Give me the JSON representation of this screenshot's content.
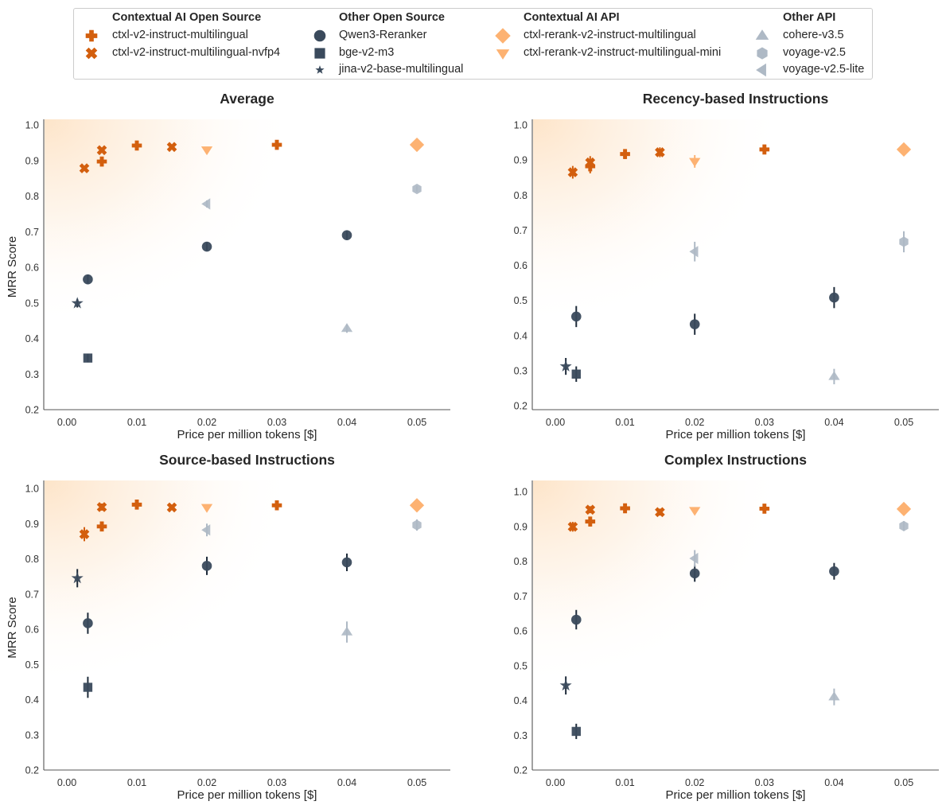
{
  "legend": {
    "groups": [
      {
        "title": "Contextual AI Open Source",
        "items": [
          {
            "key": "ctxl_v2",
            "label": "ctxl-v2-instruct-multilingual"
          },
          {
            "key": "ctxl_v2_nvfp4",
            "label": "ctxl-v2-instruct-multilingual-nvfp4"
          }
        ]
      },
      {
        "title": "Other Open Source",
        "items": [
          {
            "key": "qwen3",
            "label": "Qwen3-Reranker"
          },
          {
            "key": "bge",
            "label": "bge-v2-m3"
          },
          {
            "key": "jina",
            "label": "jina-v2-base-multilingual"
          }
        ]
      },
      {
        "title": "Contextual AI API",
        "items": [
          {
            "key": "ctxl_api",
            "label": "ctxl-rerank-v2-instruct-multilingual"
          },
          {
            "key": "ctxl_api_mini",
            "label": "ctxl-rerank-v2-instruct-multilingual-mini"
          }
        ]
      },
      {
        "title": "Other API",
        "items": [
          {
            "key": "cohere",
            "label": "cohere-v3.5"
          },
          {
            "key": "voyage",
            "label": "voyage-v2.5"
          },
          {
            "key": "voyage_lite",
            "label": "voyage-v2.5-lite"
          }
        ]
      }
    ]
  },
  "styles": {
    "ctxl_v2": {
      "marker": "plus",
      "color": "#D35F0E"
    },
    "ctxl_v2_nvfp4": {
      "marker": "x",
      "color": "#D35F0E"
    },
    "qwen3": {
      "marker": "circle",
      "color": "#3A4A5C"
    },
    "bge": {
      "marker": "square",
      "color": "#3A4A5C"
    },
    "jina": {
      "marker": "star",
      "color": "#3A4A5C"
    },
    "ctxl_api": {
      "marker": "diamond",
      "color": "#FDB272"
    },
    "ctxl_api_mini": {
      "marker": "triangle-down",
      "color": "#FDB272"
    },
    "cohere": {
      "marker": "triangle-up",
      "color": "#AEB9C5"
    },
    "voyage": {
      "marker": "hexagon",
      "color": "#AEB9C5"
    },
    "voyage_lite": {
      "marker": "triangle-left",
      "color": "#AEB9C5"
    }
  },
  "chart_data": [
    {
      "type": "scatter",
      "title": "Average",
      "xlabel": "Price per million tokens [$]",
      "ylabel": "MRR Score",
      "xlim": [
        -0.003,
        0.0545
      ],
      "ylim": [
        0.2,
        1.01
      ],
      "xticks": [
        "0.00",
        "0.01",
        "0.02",
        "0.03",
        "0.04",
        "0.05"
      ],
      "yticks": [
        "0.2",
        "0.3",
        "0.4",
        "0.5",
        "0.6",
        "0.7",
        "0.8",
        "0.9",
        "1.0"
      ],
      "series": [
        {
          "key": "ctxl_v2",
          "name": "ctxl-v2-instruct-multilingual",
          "points": [
            {
              "x": 0.005,
              "y": 0.897,
              "err": 0.006
            },
            {
              "x": 0.01,
              "y": 0.942,
              "err": 0.005
            },
            {
              "x": 0.03,
              "y": 0.944,
              "err": 0.005
            }
          ]
        },
        {
          "key": "ctxl_v2_nvfp4",
          "name": "ctxl-v2-instruct-multilingual-nvfp4",
          "points": [
            {
              "x": 0.0025,
              "y": 0.878,
              "err": 0.006
            },
            {
              "x": 0.005,
              "y": 0.929,
              "err": 0.006
            },
            {
              "x": 0.015,
              "y": 0.938,
              "err": 0.005
            }
          ]
        },
        {
          "key": "qwen3",
          "name": "Qwen3-Reranker",
          "points": [
            {
              "x": 0.003,
              "y": 0.566,
              "err": 0.012
            },
            {
              "x": 0.02,
              "y": 0.658,
              "err": 0.012
            },
            {
              "x": 0.04,
              "y": 0.69,
              "err": 0.012
            }
          ]
        },
        {
          "key": "bge",
          "name": "bge-v2-m3",
          "points": [
            {
              "x": 0.003,
              "y": 0.345,
              "err": 0.012
            }
          ]
        },
        {
          "key": "jina",
          "name": "jina-v2-base-multilingual",
          "points": [
            {
              "x": 0.0015,
              "y": 0.499,
              "err": 0.012
            }
          ]
        },
        {
          "key": "ctxl_api",
          "name": "ctxl-rerank-v2-instruct-multilingual",
          "points": [
            {
              "x": 0.05,
              "y": 0.944,
              "err": 0.004
            }
          ]
        },
        {
          "key": "ctxl_api_mini",
          "name": "ctxl-rerank-v2-instruct-multilingual-mini",
          "points": [
            {
              "x": 0.02,
              "y": 0.93,
              "err": 0.005
            }
          ]
        },
        {
          "key": "cohere",
          "name": "cohere-v3.5",
          "points": [
            {
              "x": 0.04,
              "y": 0.428,
              "err": 0.012
            }
          ]
        },
        {
          "key": "voyage",
          "name": "voyage-v2.5",
          "points": [
            {
              "x": 0.05,
              "y": 0.82,
              "err": 0.008
            }
          ]
        },
        {
          "key": "voyage_lite",
          "name": "voyage-v2.5-lite",
          "points": [
            {
              "x": 0.02,
              "y": 0.778,
              "err": 0.01
            }
          ]
        }
      ]
    },
    {
      "type": "scatter",
      "title": "Recency-based Instructions",
      "xlabel": "Price per million tokens [$]",
      "ylabel": "",
      "xlim": [
        -0.003,
        0.0545
      ],
      "ylim": [
        0.2,
        1.01
      ],
      "xticks": [
        "0.00",
        "0.01",
        "0.02",
        "0.03",
        "0.04",
        "0.05"
      ],
      "yticks": [
        "0.2",
        "0.3",
        "0.4",
        "0.5",
        "0.6",
        "0.7",
        "0.8",
        "0.9",
        "1.0"
      ],
      "series": [
        {
          "key": "ctxl_v2",
          "name": "ctxl-v2-instruct-multilingual",
          "points": [
            {
              "x": 0.005,
              "y": 0.882,
              "err": 0.02
            },
            {
              "x": 0.01,
              "y": 0.917,
              "err": 0.014
            },
            {
              "x": 0.03,
              "y": 0.93,
              "err": 0.01
            }
          ]
        },
        {
          "key": "ctxl_v2_nvfp4",
          "name": "ctxl-v2-instruct-multilingual-nvfp4",
          "points": [
            {
              "x": 0.0025,
              "y": 0.865,
              "err": 0.018
            },
            {
              "x": 0.005,
              "y": 0.893,
              "err": 0.018
            },
            {
              "x": 0.015,
              "y": 0.922,
              "err": 0.014
            }
          ]
        },
        {
          "key": "qwen3",
          "name": "Qwen3-Reranker",
          "points": [
            {
              "x": 0.003,
              "y": 0.454,
              "err": 0.03
            },
            {
              "x": 0.02,
              "y": 0.432,
              "err": 0.03
            },
            {
              "x": 0.04,
              "y": 0.508,
              "err": 0.03
            }
          ]
        },
        {
          "key": "bge",
          "name": "bge-v2-m3",
          "points": [
            {
              "x": 0.003,
              "y": 0.29,
              "err": 0.022
            }
          ]
        },
        {
          "key": "jina",
          "name": "jina-v2-base-multilingual",
          "points": [
            {
              "x": 0.0015,
              "y": 0.312,
              "err": 0.024
            }
          ]
        },
        {
          "key": "ctxl_api",
          "name": "ctxl-rerank-v2-instruct-multilingual",
          "points": [
            {
              "x": 0.05,
              "y": 0.93,
              "err": 0.008
            }
          ]
        },
        {
          "key": "ctxl_api_mini",
          "name": "ctxl-rerank-v2-instruct-multilingual-mini",
          "points": [
            {
              "x": 0.02,
              "y": 0.896,
              "err": 0.018
            }
          ]
        },
        {
          "key": "cohere",
          "name": "cohere-v3.5",
          "points": [
            {
              "x": 0.04,
              "y": 0.283,
              "err": 0.022
            }
          ]
        },
        {
          "key": "voyage",
          "name": "voyage-v2.5",
          "points": [
            {
              "x": 0.05,
              "y": 0.667,
              "err": 0.03
            }
          ]
        },
        {
          "key": "voyage_lite",
          "name": "voyage-v2.5-lite",
          "points": [
            {
              "x": 0.02,
              "y": 0.639,
              "err": 0.028
            }
          ]
        }
      ]
    },
    {
      "type": "scatter",
      "title": "Source-based Instructions",
      "xlabel": "Price per million tokens [$]",
      "ylabel": "MRR Score",
      "xlim": [
        -0.003,
        0.0545
      ],
      "ylim": [
        0.2,
        1.02
      ],
      "xticks": [
        "0.00",
        "0.01",
        "0.02",
        "0.03",
        "0.04",
        "0.05"
      ],
      "yticks": [
        "0.2",
        "0.3",
        "0.4",
        "0.5",
        "0.6",
        "0.7",
        "0.8",
        "0.9",
        "1.0"
      ],
      "series": [
        {
          "key": "ctxl_v2",
          "name": "ctxl-v2-instruct-multilingual",
          "points": [
            {
              "x": 0.005,
              "y": 0.892,
              "err": 0.014
            },
            {
              "x": 0.01,
              "y": 0.954,
              "err": 0.01
            },
            {
              "x": 0.03,
              "y": 0.952,
              "err": 0.008
            }
          ]
        },
        {
          "key": "ctxl_v2_nvfp4",
          "name": "ctxl-v2-instruct-multilingual-nvfp4",
          "points": [
            {
              "x": 0.0025,
              "y": 0.87,
              "err": 0.02
            },
            {
              "x": 0.005,
              "y": 0.947,
              "err": 0.01
            },
            {
              "x": 0.015,
              "y": 0.946,
              "err": 0.008
            }
          ]
        },
        {
          "key": "qwen3",
          "name": "Qwen3-Reranker",
          "points": [
            {
              "x": 0.003,
              "y": 0.617,
              "err": 0.03
            },
            {
              "x": 0.02,
              "y": 0.78,
              "err": 0.026
            },
            {
              "x": 0.04,
              "y": 0.79,
              "err": 0.025
            }
          ]
        },
        {
          "key": "bge",
          "name": "bge-v2-m3",
          "points": [
            {
              "x": 0.003,
              "y": 0.435,
              "err": 0.03
            }
          ]
        },
        {
          "key": "jina",
          "name": "jina-v2-base-multilingual",
          "points": [
            {
              "x": 0.0015,
              "y": 0.745,
              "err": 0.026
            }
          ]
        },
        {
          "key": "ctxl_api",
          "name": "ctxl-rerank-v2-instruct-multilingual",
          "points": [
            {
              "x": 0.05,
              "y": 0.952,
              "err": 0.008
            }
          ]
        },
        {
          "key": "ctxl_api_mini",
          "name": "ctxl-rerank-v2-instruct-multilingual-mini",
          "points": [
            {
              "x": 0.02,
              "y": 0.946,
              "err": 0.008
            }
          ]
        },
        {
          "key": "cohere",
          "name": "cohere-v3.5",
          "points": [
            {
              "x": 0.04,
              "y": 0.592,
              "err": 0.03
            }
          ]
        },
        {
          "key": "voyage",
          "name": "voyage-v2.5",
          "points": [
            {
              "x": 0.05,
              "y": 0.896,
              "err": 0.016
            }
          ]
        },
        {
          "key": "voyage_lite",
          "name": "voyage-v2.5-lite",
          "points": [
            {
              "x": 0.02,
              "y": 0.882,
              "err": 0.018
            }
          ]
        }
      ]
    },
    {
      "type": "scatter",
      "title": "Complex Instructions",
      "xlabel": "Price per million tokens [$]",
      "ylabel": "",
      "xlim": [
        -0.003,
        0.0545
      ],
      "ylim": [
        0.2,
        1.03
      ],
      "xticks": [
        "0.00",
        "0.01",
        "0.02",
        "0.03",
        "0.04",
        "0.05"
      ],
      "yticks": [
        "0.2",
        "0.3",
        "0.4",
        "0.5",
        "0.6",
        "0.7",
        "0.8",
        "0.9",
        "1.0"
      ],
      "series": [
        {
          "key": "ctxl_v2",
          "name": "ctxl-v2-instruct-multilingual",
          "points": [
            {
              "x": 0.005,
              "y": 0.914,
              "err": 0.014
            },
            {
              "x": 0.01,
              "y": 0.952,
              "err": 0.008
            },
            {
              "x": 0.03,
              "y": 0.951,
              "err": 0.008
            }
          ]
        },
        {
          "key": "ctxl_v2_nvfp4",
          "name": "ctxl-v2-instruct-multilingual-nvfp4",
          "points": [
            {
              "x": 0.0025,
              "y": 0.899,
              "err": 0.014
            },
            {
              "x": 0.005,
              "y": 0.948,
              "err": 0.01
            },
            {
              "x": 0.015,
              "y": 0.941,
              "err": 0.01
            }
          ]
        },
        {
          "key": "qwen3",
          "name": "Qwen3-Reranker",
          "points": [
            {
              "x": 0.003,
              "y": 0.632,
              "err": 0.028
            },
            {
              "x": 0.02,
              "y": 0.765,
              "err": 0.024
            },
            {
              "x": 0.04,
              "y": 0.771,
              "err": 0.024
            }
          ]
        },
        {
          "key": "bge",
          "name": "bge-v2-m3",
          "points": [
            {
              "x": 0.003,
              "y": 0.311,
              "err": 0.022
            }
          ]
        },
        {
          "key": "jina",
          "name": "jina-v2-base-multilingual",
          "points": [
            {
              "x": 0.0015,
              "y": 0.443,
              "err": 0.026
            }
          ]
        },
        {
          "key": "ctxl_api",
          "name": "ctxl-rerank-v2-instruct-multilingual",
          "points": [
            {
              "x": 0.05,
              "y": 0.95,
              "err": 0.006
            }
          ]
        },
        {
          "key": "ctxl_api_mini",
          "name": "ctxl-rerank-v2-instruct-multilingual-mini",
          "points": [
            {
              "x": 0.02,
              "y": 0.946,
              "err": 0.008
            }
          ]
        },
        {
          "key": "cohere",
          "name": "cohere-v3.5",
          "points": [
            {
              "x": 0.04,
              "y": 0.41,
              "err": 0.024
            }
          ]
        },
        {
          "key": "voyage",
          "name": "voyage-v2.5",
          "points": [
            {
              "x": 0.05,
              "y": 0.901,
              "err": 0.014
            }
          ]
        },
        {
          "key": "voyage_lite",
          "name": "voyage-v2.5-lite",
          "points": [
            {
              "x": 0.02,
              "y": 0.808,
              "err": 0.024
            }
          ]
        }
      ]
    }
  ]
}
